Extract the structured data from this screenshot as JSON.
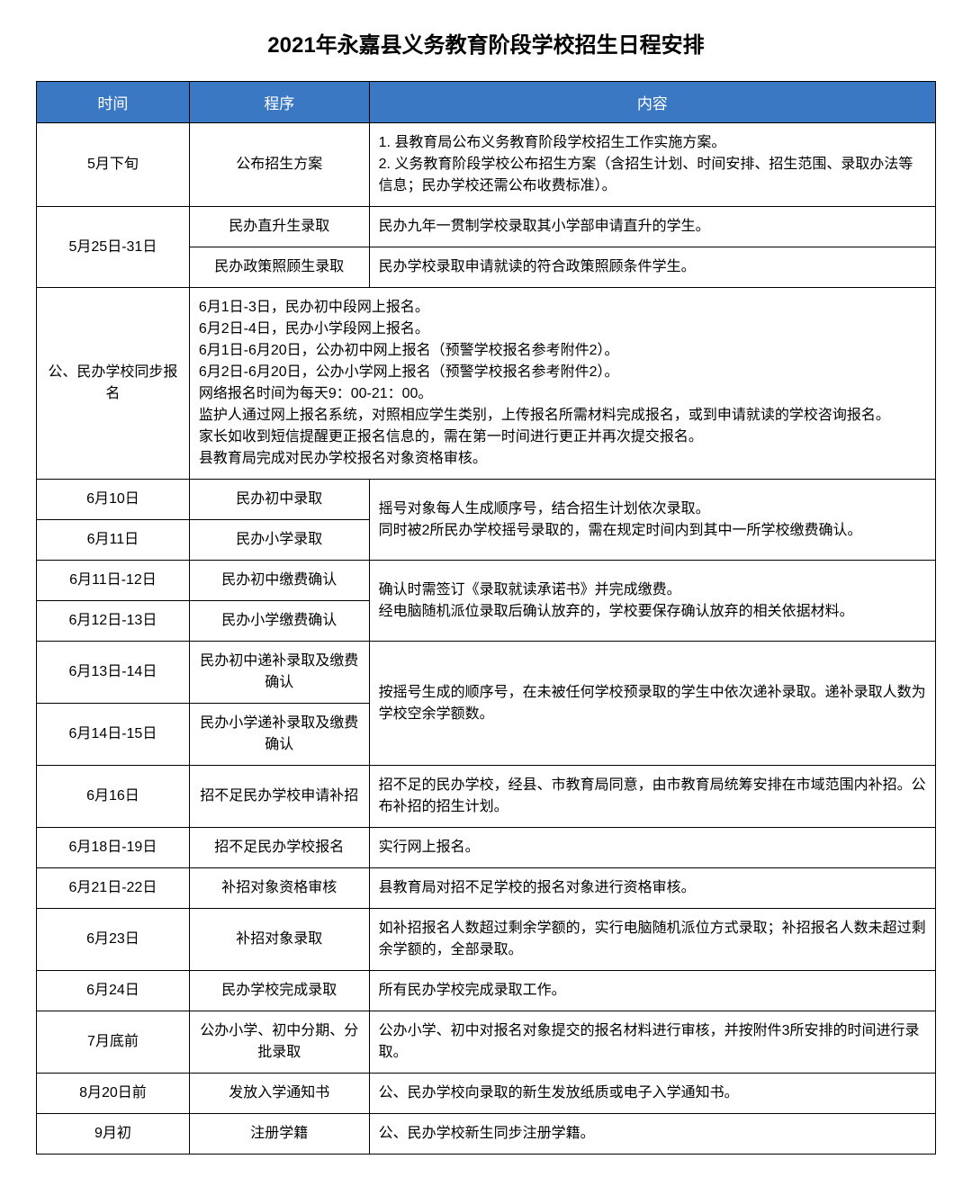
{
  "title": "2021年永嘉县义务教育阶段学校招生日程安排",
  "headers": {
    "time": "时间",
    "proc": "程序",
    "content": "内容"
  },
  "rows": {
    "r1": {
      "time": "5月下旬",
      "proc": "公布招生方案",
      "content": "1. 县教育局公布义务教育阶段学校招生工作实施方案。\n2. 义务教育阶段学校公布招生方案（含招生计划、时间安排、招生范围、录取办法等信息；民办学校还需公布收费标准）。"
    },
    "r2": {
      "time": "5月25日-31日",
      "proc1": "民办直升生录取",
      "content1": "民办九年一贯制学校录取其小学部申请直升的学生。",
      "proc2": "民办政策照顾生录取",
      "content2": "民办学校录取申请就读的符合政策照顾条件学生。"
    },
    "r3": {
      "time": "公、民办学校同步报名",
      "content": "6月1日-3日，民办初中段网上报名。\n6月2日-4日，民办小学段网上报名。\n6月1日-6月20日，公办初中网上报名（预警学校报名参考附件2）。\n6月2日-6月20日，公办小学网上报名（预警学校报名参考附件2）。\n网络报名时间为每天9：00-21：00。\n监护人通过网上报名系统，对照相应学生类别，上传报名所需材料完成报名，或到申请就读的学校咨询报名。\n家长如收到短信提醒更正报名信息的，需在第一时间进行更正并再次提交报名。\n县教育局完成对民办学校报名对象资格审核。"
    },
    "r4": {
      "time": "6月10日",
      "proc": "民办初中录取"
    },
    "r5": {
      "time": "6月11日",
      "proc": "民办小学录取",
      "content_merged": "摇号对象每人生成顺序号，结合招生计划依次录取。\n同时被2所民办学校摇号录取的，需在规定时间内到其中一所学校缴费确认。"
    },
    "r6": {
      "time": "6月11日-12日",
      "proc": "民办初中缴费确认"
    },
    "r7": {
      "time": "6月12日-13日",
      "proc": "民办小学缴费确认",
      "content_merged": "确认时需签订《录取就读承诺书》并完成缴费。\n经电脑随机派位录取后确认放弃的，学校要保存确认放弃的相关依据材料。"
    },
    "r8": {
      "time": "6月13日-14日",
      "proc": "民办初中递补录取及缴费确认"
    },
    "r9": {
      "time": "6月14日-15日",
      "proc": "民办小学递补录取及缴费确认",
      "content_merged": "按摇号生成的顺序号，在未被任何学校预录取的学生中依次递补录取。递补录取人数为学校空余学额数。"
    },
    "r10": {
      "time": "6月16日",
      "proc": "招不足民办学校申请补招",
      "content": "招不足的民办学校，经县、市教育局同意，由市教育局统筹安排在市域范围内补招。公布补招的招生计划。"
    },
    "r11": {
      "time": "6月18日-19日",
      "proc": "招不足民办学校报名",
      "content": "实行网上报名。"
    },
    "r12": {
      "time": "6月21日-22日",
      "proc": "补招对象资格审核",
      "content": "县教育局对招不足学校的报名对象进行资格审核。"
    },
    "r13": {
      "time": "6月23日",
      "proc": "补招对象录取",
      "content": "如补招报名人数超过剩余学额的，实行电脑随机派位方式录取；补招报名人数未超过剩余学额的，全部录取。"
    },
    "r14": {
      "time": "6月24日",
      "proc": "民办学校完成录取",
      "content": "所有民办学校完成录取工作。"
    },
    "r15": {
      "time": "7月底前",
      "proc": "公办小学、初中分期、分批录取",
      "content": "公办小学、初中对报名对象提交的报名材料进行审核，并按附件3所安排的时间进行录取。"
    },
    "r16": {
      "time": "8月20日前",
      "proc": "发放入学通知书",
      "content": "公、民办学校向录取的新生发放纸质或电子入学通知书。"
    },
    "r17": {
      "time": "9月初",
      "proc": "注册学籍",
      "content": "公、民办学校新生同步注册学籍。"
    }
  },
  "colors": {
    "header_bg": "#3b78c3",
    "header_text": "#ffffff",
    "border": "#000000",
    "text": "#000000",
    "background": "#ffffff"
  }
}
